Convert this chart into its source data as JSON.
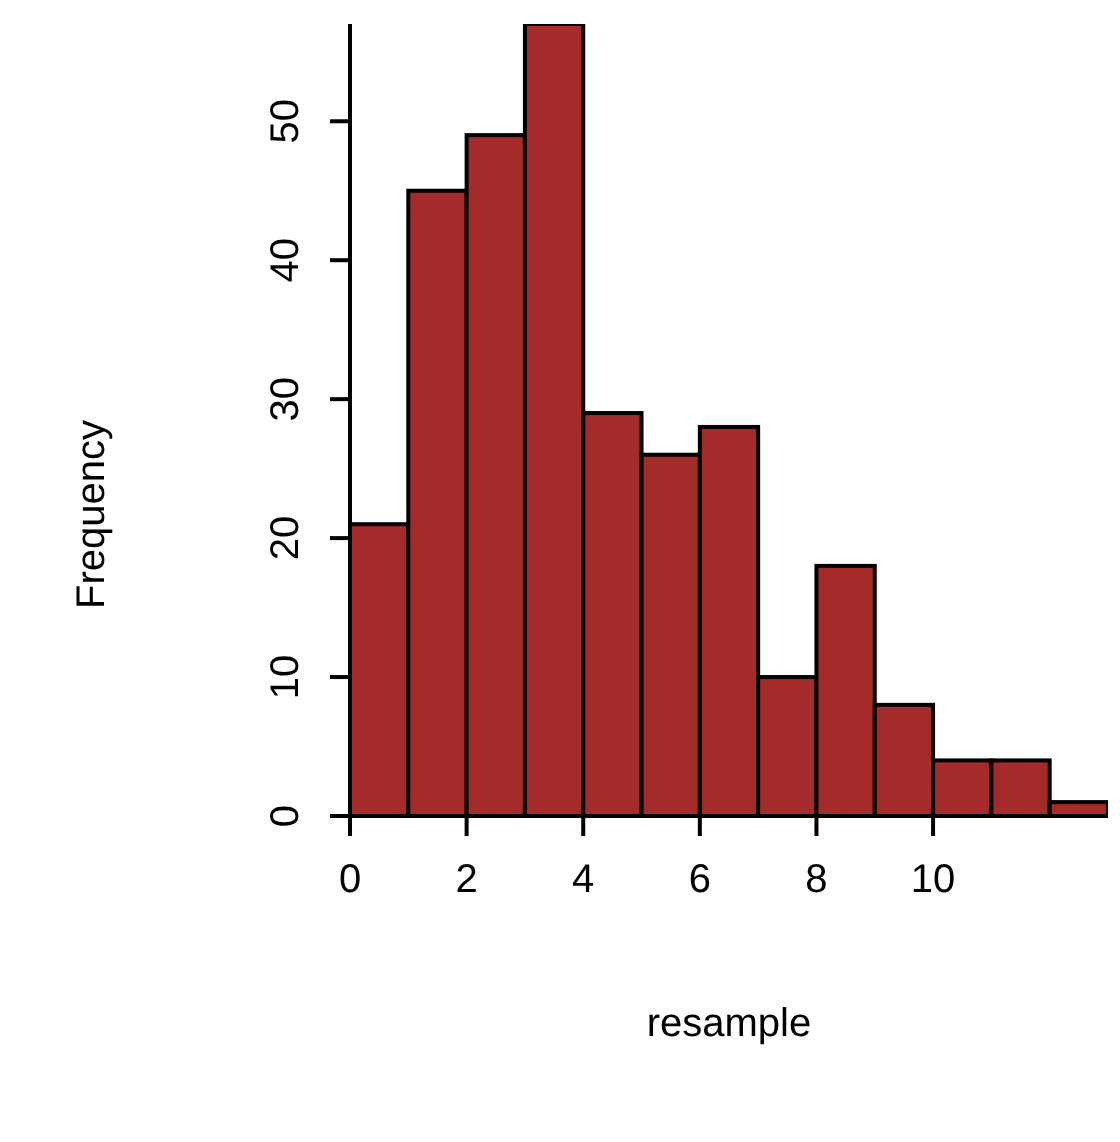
{
  "chart_data": {
    "type": "histogram",
    "xlabel": "resample",
    "ylabel": "Frequency",
    "bins": [
      0,
      1,
      2,
      3,
      4,
      5,
      6,
      7,
      8,
      9,
      10,
      11,
      12,
      13
    ],
    "values": [
      21,
      45,
      49,
      57,
      29,
      26,
      28,
      10,
      18,
      8,
      4,
      4,
      1
    ],
    "color": "#a52a2a",
    "xlim": [
      0,
      13
    ],
    "xticks": [
      0,
      2,
      4,
      6,
      8,
      10
    ],
    "ylim": [
      0,
      57
    ],
    "yticks": [
      0,
      10,
      20,
      30,
      40,
      50
    ],
    "grid": false
  }
}
